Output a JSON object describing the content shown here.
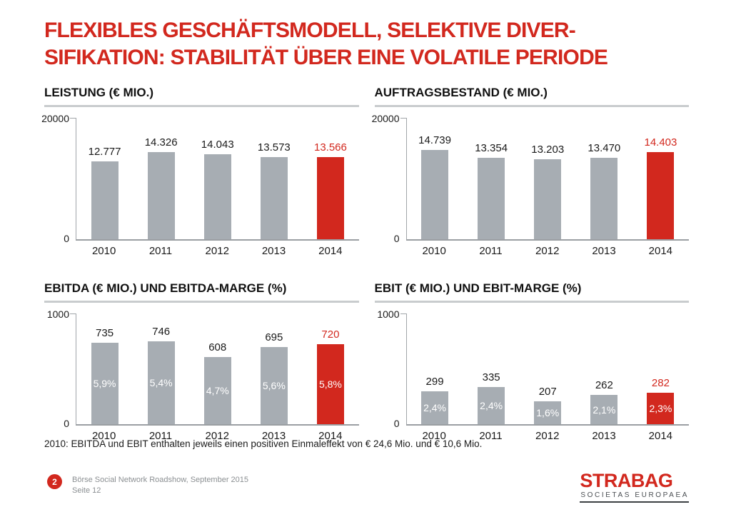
{
  "slide_title": {
    "line1": "FLEXIBLES GESCHÄFTSMODELL, SELEKTIVE DIVER-",
    "line2": "SIFIKATION: STABILITÄT ÜBER EINE VOLATILE PERIODE"
  },
  "footnote": "2010: EBITDA und EBIT enthalten jeweils einen positiven Einmaleffekt von € 24,6 Mio. und € 10,6 Mio.",
  "footer": {
    "page_number": "2",
    "source_line": "Börse Social Network Roadshow, September 2015",
    "page_line": "Seite 12",
    "logo_name": "STRABAG",
    "logo_subtitle": "SOCIETAS EUROPAEA"
  },
  "colors": {
    "accent_red": "#d2281e",
    "bar_gray": "#a7adb3",
    "axis_gray": "#a0a5a9",
    "title_underline_gray": "#c9ccce",
    "footer_text_gray": "#8b8f92"
  },
  "chart_data": [
    {
      "type": "bar",
      "title": "LEISTUNG (€ MIO.)",
      "categories": [
        "2010",
        "2011",
        "2012",
        "2013",
        "2014"
      ],
      "values": [
        12777,
        14326,
        14043,
        13573,
        13566
      ],
      "value_labels": [
        "12.777",
        "14.326",
        "14.043",
        "13.573",
        "13.566"
      ],
      "ylim": [
        0,
        20000
      ],
      "y_tick_labels": [
        "20000",
        "0"
      ],
      "highlight_index": 4,
      "grid": false,
      "legend": false
    },
    {
      "type": "bar",
      "title": "AUFTRAGSBESTAND (€ MIO.)",
      "categories": [
        "2010",
        "2011",
        "2012",
        "2013",
        "2014"
      ],
      "values": [
        14739,
        13354,
        13203,
        13470,
        14403
      ],
      "value_labels": [
        "14.739",
        "13.354",
        "13.203",
        "13.470",
        "14.403"
      ],
      "ylim": [
        0,
        20000
      ],
      "y_tick_labels": [
        "20000",
        "0"
      ],
      "highlight_index": 4,
      "grid": false,
      "legend": false
    },
    {
      "type": "bar",
      "title": "EBITDA (€ MIO.) UND EBITDA-MARGE (%)",
      "categories": [
        "2010",
        "2011",
        "2012",
        "2013",
        "2014"
      ],
      "values": [
        735,
        746,
        608,
        695,
        720
      ],
      "value_labels": [
        "735",
        "746",
        "608",
        "695",
        "720"
      ],
      "margin_labels": [
        "5,9%",
        "5,4%",
        "4,7%",
        "5,6%",
        "5,8%"
      ],
      "ylim": [
        0,
        1000
      ],
      "y_tick_labels": [
        "1000",
        "0"
      ],
      "highlight_index": 4,
      "grid": false,
      "legend": false
    },
    {
      "type": "bar",
      "title": "EBIT (€ MIO.) UND EBIT-MARGE (%)",
      "categories": [
        "2010",
        "2011",
        "2012",
        "2013",
        "2014"
      ],
      "values": [
        299,
        335,
        207,
        262,
        282
      ],
      "value_labels": [
        "299",
        "335",
        "207",
        "262",
        "282"
      ],
      "margin_labels": [
        "2,4%",
        "2,4%",
        "1,6%",
        "2,1%",
        "2,3%"
      ],
      "ylim": [
        0,
        1000
      ],
      "y_tick_labels": [
        "1000",
        "0"
      ],
      "highlight_index": 4,
      "grid": false,
      "legend": false
    }
  ]
}
